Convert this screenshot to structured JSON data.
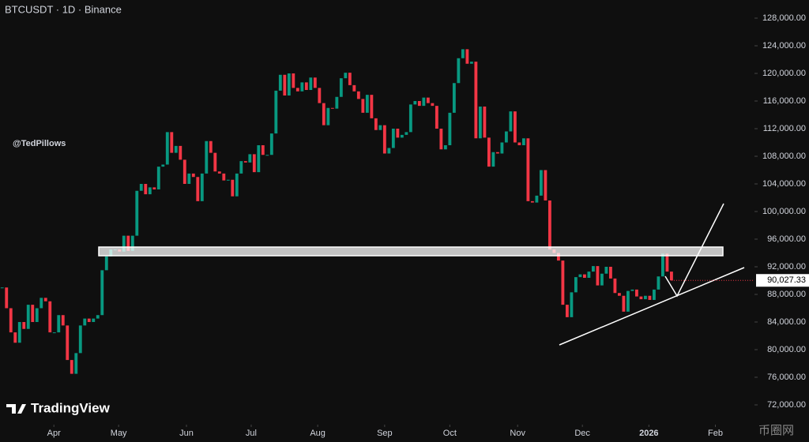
{
  "chart_data": {
    "type": "candlestick",
    "title": "BTCUSDT · 1D · Binance",
    "watermark": "@TedPillows",
    "brand": "TradingView",
    "corner_logo": "币圈网",
    "up_color": "#089981",
    "down_color": "#f23645",
    "close": [
      89000,
      86000,
      82500,
      81000,
      84000,
      83000,
      86500,
      84000,
      86000,
      87500,
      87000,
      82500,
      82500,
      85000,
      83500,
      78500,
      76500,
      79500,
      83500,
      84500,
      84000,
      84500,
      85000,
      91500,
      93500,
      94500,
      94500,
      94200,
      96500,
      94300,
      96500,
      103000,
      104000,
      102500,
      103500,
      103200,
      106500,
      106800,
      111500,
      108500,
      109500,
      107500,
      104000,
      105500,
      105000,
      101500,
      105500,
      110200,
      108500,
      105800,
      105500,
      104500,
      104600,
      102200,
      105500,
      107300,
      107100,
      108300,
      105700,
      109600,
      108200,
      108200,
      111300,
      117500,
      119800,
      116800,
      120000,
      117900,
      117400,
      118700,
      117600,
      119400,
      117900,
      115700,
      112500,
      115000,
      114900,
      116600,
      119300,
      120100,
      118300,
      117400,
      116300,
      114300,
      116900,
      113500,
      111800,
      112500,
      108400,
      109200,
      112000,
      110700,
      111100,
      111500,
      115500,
      116000,
      115300,
      116500,
      115700,
      115300,
      112000,
      109000,
      109600,
      114300,
      118600,
      122200,
      123500,
      121400,
      121700,
      110600,
      115200,
      110700,
      106500,
      108600,
      108400,
      110000,
      111600,
      114500,
      110000,
      109600,
      110600,
      101500,
      101300,
      102300,
      106000,
      101600,
      94500,
      94000,
      92900,
      86500,
      84700,
      88300,
      90500,
      90900,
      90400,
      91300,
      92100,
      89300,
      91000,
      92000,
      90300,
      88200,
      87800,
      85500,
      88500,
      88700,
      87700,
      87300,
      87800,
      87200,
      88700,
      90600,
      93900,
      91300,
      90027.33
    ],
    "last_price": {
      "value": 90027.33,
      "label": "90,027.33"
    },
    "xlim": [
      -0.5,
      173.1
    ],
    "xticks": [
      {
        "value": 11.9,
        "label": "Apr"
      },
      {
        "value": 26.8,
        "label": "May"
      },
      {
        "value": 42.4,
        "label": "Jun"
      },
      {
        "value": 57.3,
        "label": "Jul"
      },
      {
        "value": 72.6,
        "label": "Aug"
      },
      {
        "value": 88.0,
        "label": "Sep"
      },
      {
        "value": 103.0,
        "label": "Oct"
      },
      {
        "value": 118.6,
        "label": "Nov"
      },
      {
        "value": 133.5,
        "label": "Dec"
      },
      {
        "value": 148.8,
        "label": "2026"
      },
      {
        "value": 164.1,
        "label": "Feb"
      }
    ],
    "ylim": [
      69140,
      130630
    ],
    "yticks": [
      {
        "value": 72000,
        "label": "72,000.00"
      },
      {
        "value": 76000,
        "label": "76,000.00"
      },
      {
        "value": 80000,
        "label": "80,000.00"
      },
      {
        "value": 84000,
        "label": "84,000.00"
      },
      {
        "value": 88000,
        "label": "88,000.00"
      },
      {
        "value": 92000,
        "label": "92,000.00"
      },
      {
        "value": 96000,
        "label": "96,000.00"
      },
      {
        "value": 100000,
        "label": "100,000.00"
      },
      {
        "value": 104000,
        "label": "104,000.00"
      },
      {
        "value": 108000,
        "label": "108,000.00"
      },
      {
        "value": 112000,
        "label": "112,000.00"
      },
      {
        "value": 116000,
        "label": "116,000.00"
      },
      {
        "value": 120000,
        "label": "120,000.00"
      },
      {
        "value": 124000,
        "label": "124,000.00"
      },
      {
        "value": 128000,
        "label": "128,000.00"
      }
    ]
  }
}
